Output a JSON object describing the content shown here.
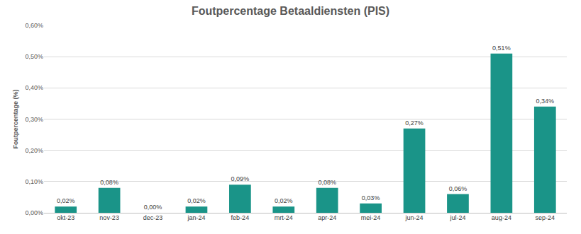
{
  "chart_data": {
    "type": "bar",
    "title": "Foutpercentage Betaaldiensten (PIS)",
    "y_label": "Foutpercentage (%)",
    "categories": [
      "okt-23",
      "nov-23",
      "dec-23",
      "jan-24",
      "feb-24",
      "mrt-24",
      "apr-24",
      "mei-24",
      "jun-24",
      "jul-24",
      "aug-24",
      "sep-24"
    ],
    "values": [
      0.02,
      0.08,
      0.0,
      0.02,
      0.09,
      0.02,
      0.08,
      0.03,
      0.27,
      0.06,
      0.51,
      0.34
    ],
    "value_labels": [
      "0,02%",
      "0,08%",
      "0,00%",
      "0,02%",
      "0,09%",
      "0,02%",
      "0,08%",
      "0,03%",
      "0,27%",
      "0,06%",
      "0,51%",
      "0,34%"
    ],
    "data_labels": true,
    "color": "#1a9488",
    "ylim": [
      0,
      0.6
    ],
    "yticks": [
      {
        "value": 0,
        "label": "0,00%"
      },
      {
        "value": 0.1,
        "label": "0,10%"
      },
      {
        "value": 0.2,
        "label": "0,20%"
      },
      {
        "value": 0.3,
        "label": "0,30%"
      },
      {
        "value": 0.4,
        "label": "0,40%"
      },
      {
        "value": 0.5,
        "label": "0,50%"
      },
      {
        "value": 0.6,
        "label": "0,60%"
      }
    ],
    "grid": true
  }
}
